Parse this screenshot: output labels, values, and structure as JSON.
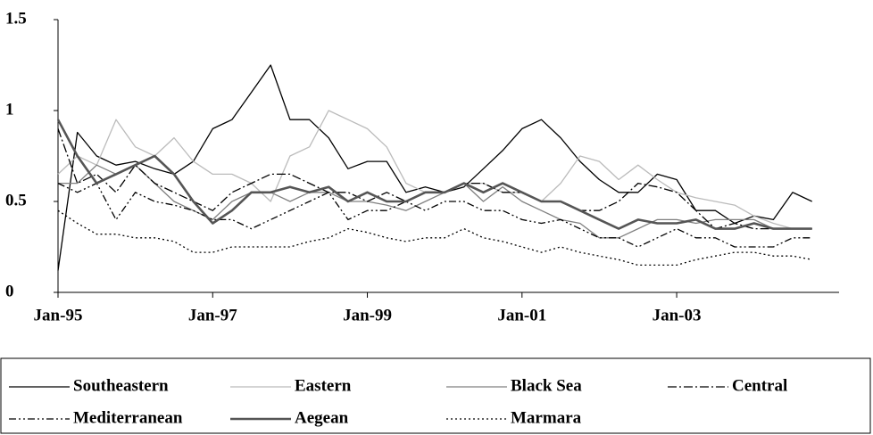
{
  "chart_data": {
    "type": "line",
    "x": [
      1995,
      1995.25,
      1995.5,
      1995.75,
      1996,
      1996.25,
      1996.5,
      1996.75,
      1997,
      1997.25,
      1997.5,
      1997.75,
      1998,
      1998.25,
      1998.5,
      1998.75,
      1999,
      1999.25,
      1999.5,
      1999.75,
      2000,
      2000.25,
      2000.5,
      2000.75,
      2001,
      2001.25,
      2001.5,
      2001.75,
      2002,
      2002.25,
      2002.5,
      2002.75,
      2003,
      2003.25,
      2003.5,
      2003.75,
      2004,
      2004.25,
      2004.5,
      2004.75
    ],
    "xlim": [
      1995,
      2005.1
    ],
    "xticks": [
      {
        "value": 1995,
        "label": "Jan-95"
      },
      {
        "value": 1997,
        "label": "Jan-97"
      },
      {
        "value": 1999,
        "label": "Jan-99"
      },
      {
        "value": 2001,
        "label": "Jan-01"
      },
      {
        "value": 2003,
        "label": "Jan-03"
      }
    ],
    "ylim": [
      0,
      1.5
    ],
    "yticks": [
      0,
      0.5,
      1,
      1.5
    ],
    "grid": false,
    "legend": "bottom",
    "series": [
      {
        "name": "Southeastern",
        "color": "#000000",
        "dash": "none",
        "width": 1.3,
        "values": [
          0.12,
          0.88,
          0.75,
          0.7,
          0.72,
          0.68,
          0.65,
          0.72,
          0.9,
          0.95,
          1.1,
          1.25,
          0.95,
          0.95,
          0.85,
          0.68,
          0.72,
          0.72,
          0.55,
          0.58,
          0.55,
          0.58,
          0.68,
          0.78,
          0.9,
          0.95,
          0.85,
          0.72,
          0.62,
          0.55,
          0.55,
          0.65,
          0.62,
          0.45,
          0.45,
          0.38,
          0.42,
          0.4,
          0.55,
          0.5
        ]
      },
      {
        "name": "Eastern",
        "color": "#bbbbbb",
        "dash": "none",
        "width": 1.3,
        "values": [
          0.65,
          0.75,
          0.7,
          0.95,
          0.8,
          0.75,
          0.85,
          0.72,
          0.65,
          0.65,
          0.6,
          0.5,
          0.75,
          0.8,
          1.0,
          0.95,
          0.9,
          0.8,
          0.6,
          0.55,
          0.55,
          0.6,
          0.6,
          0.55,
          0.55,
          0.5,
          0.6,
          0.75,
          0.72,
          0.62,
          0.7,
          0.62,
          0.55,
          0.52,
          0.5,
          0.48,
          0.42,
          0.38,
          0.35,
          0.35
        ]
      },
      {
        "name": "Black Sea",
        "color": "#808080",
        "dash": "none",
        "width": 1.3,
        "values": [
          0.6,
          0.6,
          0.7,
          0.65,
          0.7,
          0.6,
          0.5,
          0.45,
          0.4,
          0.5,
          0.55,
          0.55,
          0.5,
          0.55,
          0.55,
          0.5,
          0.5,
          0.48,
          0.45,
          0.5,
          0.55,
          0.6,
          0.5,
          0.58,
          0.5,
          0.45,
          0.4,
          0.38,
          0.3,
          0.3,
          0.35,
          0.4,
          0.4,
          0.38,
          0.4,
          0.4,
          0.4,
          0.35,
          0.35,
          0.35
        ]
      },
      {
        "name": "Central",
        "color": "#000000",
        "dash": "10,3,2,3",
        "width": 1.3,
        "values": [
          0.9,
          0.6,
          0.65,
          0.55,
          0.7,
          0.6,
          0.55,
          0.5,
          0.45,
          0.55,
          0.6,
          0.65,
          0.65,
          0.6,
          0.55,
          0.55,
          0.5,
          0.55,
          0.5,
          0.55,
          0.55,
          0.6,
          0.6,
          0.55,
          0.55,
          0.5,
          0.5,
          0.45,
          0.45,
          0.5,
          0.6,
          0.58,
          0.55,
          0.45,
          0.35,
          0.38,
          0.35,
          0.35,
          0.35,
          0.35
        ]
      },
      {
        "name": "Mediterranean",
        "color": "#000000",
        "dash": "8,3,2,3,2,3",
        "width": 1.3,
        "values": [
          0.6,
          0.55,
          0.6,
          0.4,
          0.55,
          0.5,
          0.48,
          0.45,
          0.4,
          0.4,
          0.35,
          0.4,
          0.45,
          0.5,
          0.55,
          0.4,
          0.45,
          0.45,
          0.5,
          0.45,
          0.5,
          0.5,
          0.45,
          0.45,
          0.4,
          0.38,
          0.4,
          0.35,
          0.3,
          0.3,
          0.25,
          0.3,
          0.35,
          0.3,
          0.3,
          0.25,
          0.25,
          0.25,
          0.3,
          0.3
        ]
      },
      {
        "name": "Aegean",
        "color": "#555555",
        "dash": "none",
        "width": 2.6,
        "values": [
          0.95,
          0.75,
          0.6,
          0.65,
          0.7,
          0.75,
          0.65,
          0.5,
          0.38,
          0.45,
          0.55,
          0.55,
          0.58,
          0.55,
          0.58,
          0.5,
          0.55,
          0.5,
          0.5,
          0.55,
          0.55,
          0.6,
          0.55,
          0.6,
          0.55,
          0.5,
          0.5,
          0.45,
          0.4,
          0.35,
          0.4,
          0.38,
          0.38,
          0.4,
          0.35,
          0.35,
          0.38,
          0.35,
          0.35,
          0.35
        ]
      },
      {
        "name": "Marmara",
        "color": "#000000",
        "dash": "2,3",
        "width": 1.3,
        "values": [
          0.45,
          0.38,
          0.32,
          0.32,
          0.3,
          0.3,
          0.28,
          0.22,
          0.22,
          0.25,
          0.25,
          0.25,
          0.25,
          0.28,
          0.3,
          0.35,
          0.33,
          0.3,
          0.28,
          0.3,
          0.3,
          0.35,
          0.3,
          0.28,
          0.25,
          0.22,
          0.25,
          0.22,
          0.2,
          0.18,
          0.15,
          0.15,
          0.15,
          0.18,
          0.2,
          0.22,
          0.22,
          0.2,
          0.2,
          0.18
        ]
      }
    ]
  }
}
